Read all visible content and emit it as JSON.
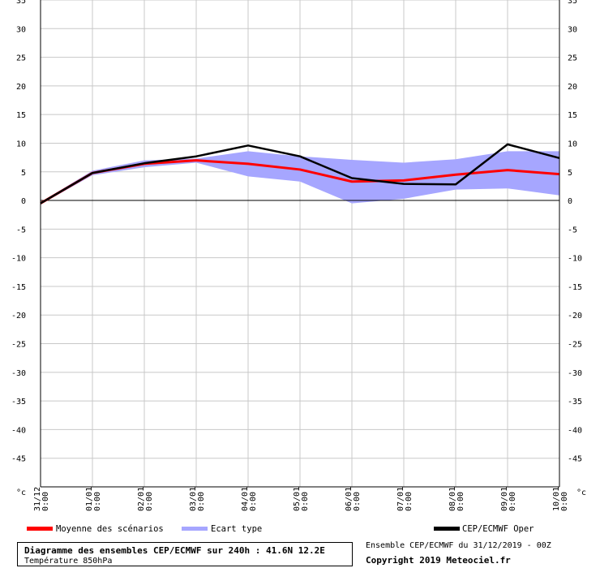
{
  "chart_data": {
    "type": "line",
    "unit_label": "°c",
    "ylim": [
      -50,
      35
    ],
    "y_ticks": [
      35,
      30,
      25,
      20,
      15,
      10,
      5,
      0,
      -5,
      -10,
      -15,
      -20,
      -25,
      -30,
      -35,
      -40,
      -45
    ],
    "x_ticks": [
      {
        "date": "31/12",
        "time": "0:00"
      },
      {
        "date": "01/01",
        "time": "0:00"
      },
      {
        "date": "02/01",
        "time": "0:00"
      },
      {
        "date": "03/01",
        "time": "0:00"
      },
      {
        "date": "04/01",
        "time": "0:00"
      },
      {
        "date": "05/01",
        "time": "0:00"
      },
      {
        "date": "06/01",
        "time": "0:00"
      },
      {
        "date": "07/01",
        "time": "0:00"
      },
      {
        "date": "08/01",
        "time": "0:00"
      },
      {
        "date": "09/01",
        "time": "0:00"
      },
      {
        "date": "10/01",
        "time": "0:00"
      }
    ],
    "series": [
      {
        "name": "Moyenne des scénarios",
        "color": "#ff0000",
        "values": [
          -0.5,
          4.8,
          6.4,
          7.0,
          6.4,
          5.4,
          3.3,
          3.5,
          4.5,
          5.3,
          4.6
        ]
      },
      {
        "name": "Ecart type",
        "color": "#a6a6ff",
        "upper": [
          -0.3,
          5.2,
          7.0,
          7.3,
          8.6,
          7.7,
          7.1,
          6.6,
          7.2,
          8.6,
          8.6
        ],
        "lower": [
          -0.7,
          4.4,
          5.8,
          6.6,
          4.2,
          3.3,
          -0.5,
          0.3,
          1.9,
          2.1,
          0.9
        ]
      },
      {
        "name": "CEP/ECMWF Oper",
        "color": "#000000",
        "values": [
          -0.5,
          4.8,
          6.5,
          7.7,
          9.6,
          7.7,
          3.9,
          2.9,
          2.8,
          9.8,
          7.4
        ]
      }
    ],
    "title": "Diagramme des ensembles CEP/ECMWF sur 240h : 41.6N 12.2E",
    "subtitle": "Température 850hPa"
  },
  "credits": {
    "line1": "Ensemble CEP/ECMWF du 31/12/2019 - 00Z",
    "line2": "Copyright 2019 Meteociel.fr"
  }
}
